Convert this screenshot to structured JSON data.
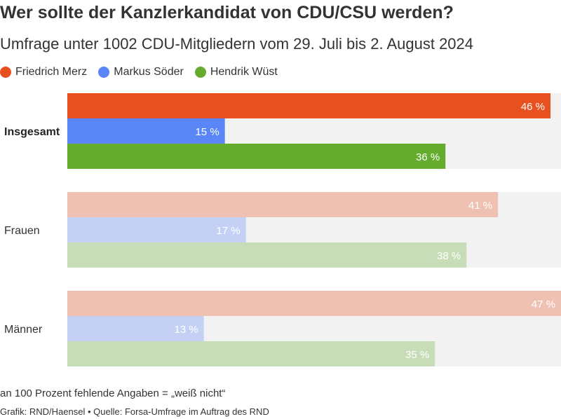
{
  "title": "Wer sollte der Kanzlerkandidat von CDU/CSU werden?",
  "subtitle": "Umfrage unter 1002 CDU-Mitgliedern vom 29. Juli bis 2. August 2024",
  "footnote": "an 100 Prozent fehlende Angaben = „weiß nicht“",
  "source": "Grafik: RND/Haensel • Quelle: Forsa-Umfrage im Auftrag des RND",
  "colors": {
    "merz": "#e8501f",
    "soeder": "#5b86f7",
    "wuest": "#65ab2d",
    "track": "#f2f2f2"
  },
  "chart_data": {
    "type": "bar",
    "orientation": "horizontal",
    "title": "Wer sollte der Kanzlerkandidat von CDU/CSU werden?",
    "subtitle": "Umfrage unter 1002 CDU-Mitgliedern vom 29. Juli bis 2. August 2024",
    "categories": [
      "Insgesamt",
      "Frauen",
      "Männer"
    ],
    "highlighted_category": "Insgesamt",
    "series": [
      {
        "name": "Friedrich Merz",
        "color": "#e8501f",
        "values": [
          46,
          41,
          47
        ]
      },
      {
        "name": "Markus Söder",
        "color": "#5b86f7",
        "values": [
          15,
          17,
          13
        ]
      },
      {
        "name": "Hendrik Wüst",
        "color": "#65ab2d",
        "values": [
          36,
          38,
          35
        ]
      }
    ],
    "value_labels": [
      [
        "46 %",
        "41 %",
        "47 %"
      ],
      [
        "15 %",
        "17 %",
        "13 %"
      ],
      [
        "36 %",
        "38 %",
        "35 %"
      ]
    ],
    "unit": "%",
    "xlim": [
      0,
      47
    ],
    "legend_position": "top-left",
    "grid": false
  }
}
